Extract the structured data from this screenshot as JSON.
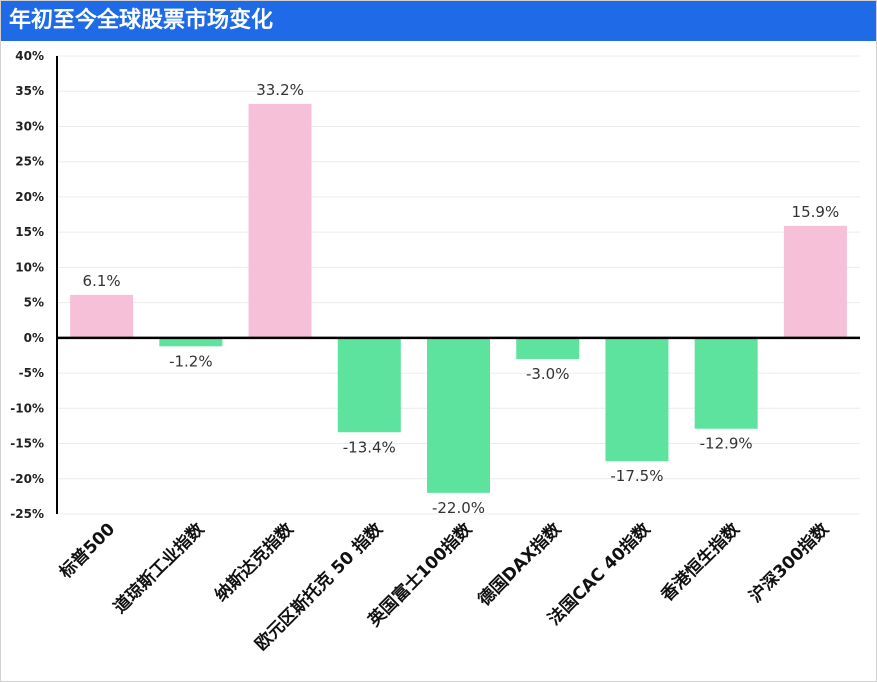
{
  "title": "年初至今全球股票市场变化",
  "colors": {
    "title_bar": "#1f6ae6",
    "positive": "#f5c0d8",
    "negative": "#5ee39e"
  },
  "chart_data": {
    "type": "bar",
    "title": "年初至今全球股票市场变化",
    "xlabel": "",
    "ylabel": "",
    "categories": [
      "标普500",
      "道琼斯工业指数",
      "纳斯达克指数",
      "欧元区斯托克 50 指数",
      "英国富士100指数",
      "德国DAX指数",
      "法国CAC 40指数",
      "香港恒生指数",
      "沪深300指数"
    ],
    "values": [
      6.1,
      -1.2,
      33.2,
      -13.4,
      -22.0,
      -3.0,
      -17.5,
      -12.9,
      15.9
    ],
    "value_labels": [
      "6.1%",
      "-1.2%",
      "33.2%",
      "-13.4%",
      "-22.0%",
      "-3.0%",
      "-17.5%",
      "-12.9%",
      "15.9%"
    ],
    "ylim": [
      -25,
      40
    ],
    "yticks": [
      40,
      35,
      30,
      25,
      20,
      15,
      10,
      5,
      0,
      -5,
      -10,
      -15,
      -20,
      -25
    ],
    "ytick_labels": [
      "40%",
      "35%",
      "30%",
      "25%",
      "20%",
      "15%",
      "10%",
      "5%",
      "0%",
      "-5%",
      "-10%",
      "-15%",
      "-20%",
      "-25%"
    ],
    "grid": true,
    "legend": "none"
  }
}
